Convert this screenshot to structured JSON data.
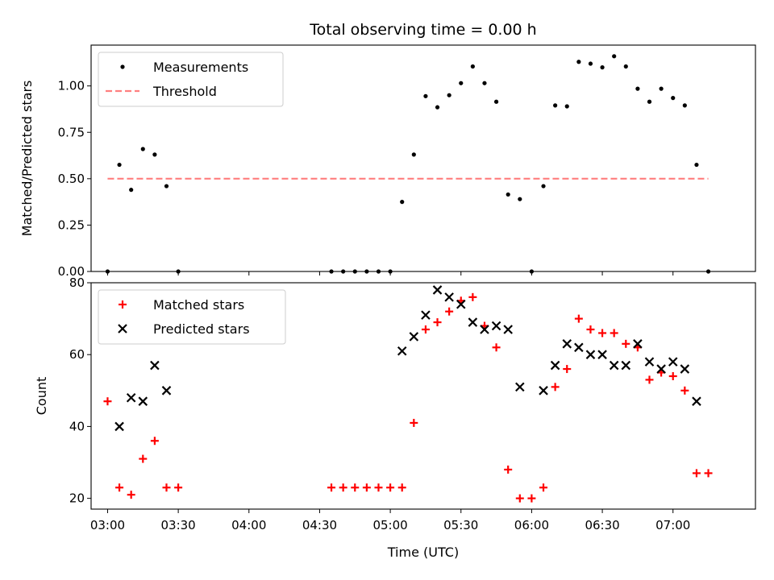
{
  "chart_data": [
    {
      "type": "scatter",
      "title": "Total observing time = 0.00 h",
      "xlabel": "",
      "ylabel": "Matched/Predicted stars",
      "ylim": [
        0,
        1.22
      ],
      "xlim": [
        "02:53",
        "07:35"
      ],
      "yticks": [
        "0.00",
        "0.25",
        "0.50",
        "0.75",
        "1.00"
      ],
      "legend_position": "upper-left",
      "series": [
        {
          "name": "Measurements",
          "marker": "dot",
          "color": "#000000",
          "points": [
            [
              "03:00",
              0.0
            ],
            [
              "03:05",
              0.575
            ],
            [
              "03:10",
              0.44
            ],
            [
              "03:15",
              0.66
            ],
            [
              "03:20",
              0.63
            ],
            [
              "03:25",
              0.46
            ],
            [
              "03:30",
              0.0
            ],
            [
              "04:35",
              0.0
            ],
            [
              "04:40",
              0.0
            ],
            [
              "04:45",
              0.0
            ],
            [
              "04:50",
              0.0
            ],
            [
              "04:55",
              0.0
            ],
            [
              "05:00",
              0.0
            ],
            [
              "05:05",
              0.375
            ],
            [
              "05:10",
              0.63
            ],
            [
              "05:15",
              0.945
            ],
            [
              "05:20",
              0.885
            ],
            [
              "05:25",
              0.95
            ],
            [
              "05:30",
              1.015
            ],
            [
              "05:35",
              1.105
            ],
            [
              "05:40",
              1.015
            ],
            [
              "05:45",
              0.915
            ],
            [
              "05:50",
              0.415
            ],
            [
              "05:55",
              0.39
            ],
            [
              "06:00",
              0.0
            ],
            [
              "06:05",
              0.46
            ],
            [
              "06:10",
              0.895
            ],
            [
              "06:15",
              0.89
            ],
            [
              "06:20",
              1.13
            ],
            [
              "06:25",
              1.12
            ],
            [
              "06:30",
              1.1
            ],
            [
              "06:35",
              1.16
            ],
            [
              "06:40",
              1.105
            ],
            [
              "06:45",
              0.985
            ],
            [
              "06:50",
              0.915
            ],
            [
              "06:55",
              0.985
            ],
            [
              "07:00",
              0.935
            ],
            [
              "07:05",
              0.895
            ],
            [
              "07:10",
              0.575
            ],
            [
              "07:15",
              0.0
            ]
          ]
        },
        {
          "name": "Threshold",
          "marker": "dashed-line",
          "color": "#ff7f7f",
          "points": [
            [
              "03:00",
              0.5
            ],
            [
              "07:15",
              0.5
            ]
          ]
        }
      ]
    },
    {
      "type": "scatter",
      "title": "",
      "xlabel": "Time (UTC)",
      "ylabel": "Count",
      "ylim": [
        17,
        80
      ],
      "xlim": [
        "02:53",
        "07:35"
      ],
      "yticks": [
        "20",
        "40",
        "60",
        "80"
      ],
      "xticks": [
        "03:00",
        "03:30",
        "04:00",
        "04:30",
        "05:00",
        "05:30",
        "06:00",
        "06:30",
        "07:00"
      ],
      "legend_position": "upper-left",
      "series": [
        {
          "name": "Matched stars",
          "marker": "plus",
          "color": "#ff0000",
          "points": [
            [
              "03:00",
              47
            ],
            [
              "03:05",
              23
            ],
            [
              "03:10",
              21
            ],
            [
              "03:15",
              31
            ],
            [
              "03:20",
              36
            ],
            [
              "03:25",
              23
            ],
            [
              "03:30",
              23
            ],
            [
              "04:35",
              23
            ],
            [
              "04:40",
              23
            ],
            [
              "04:45",
              23
            ],
            [
              "04:50",
              23
            ],
            [
              "04:55",
              23
            ],
            [
              "05:00",
              23
            ],
            [
              "05:05",
              23
            ],
            [
              "05:10",
              41
            ],
            [
              "05:15",
              67
            ],
            [
              "05:20",
              69
            ],
            [
              "05:25",
              72
            ],
            [
              "05:30",
              75
            ],
            [
              "05:35",
              76
            ],
            [
              "05:40",
              68
            ],
            [
              "05:45",
              62
            ],
            [
              "05:50",
              28
            ],
            [
              "05:55",
              20
            ],
            [
              "06:00",
              20
            ],
            [
              "06:05",
              23
            ],
            [
              "06:10",
              51
            ],
            [
              "06:15",
              56
            ],
            [
              "06:20",
              70
            ],
            [
              "06:25",
              67
            ],
            [
              "06:30",
              66
            ],
            [
              "06:35",
              66
            ],
            [
              "06:40",
              63
            ],
            [
              "06:45",
              62
            ],
            [
              "06:50",
              53
            ],
            [
              "06:55",
              55
            ],
            [
              "07:00",
              54
            ],
            [
              "07:05",
              50
            ],
            [
              "07:10",
              27
            ],
            [
              "07:15",
              27
            ]
          ]
        },
        {
          "name": "Predicted stars",
          "marker": "x",
          "color": "#000000",
          "points": [
            [
              "03:05",
              40
            ],
            [
              "03:10",
              48
            ],
            [
              "03:15",
              47
            ],
            [
              "03:20",
              57
            ],
            [
              "03:25",
              50
            ],
            [
              "05:05",
              61
            ],
            [
              "05:10",
              65
            ],
            [
              "05:15",
              71
            ],
            [
              "05:20",
              78
            ],
            [
              "05:25",
              76
            ],
            [
              "05:30",
              74
            ],
            [
              "05:35",
              69
            ],
            [
              "05:40",
              67
            ],
            [
              "05:45",
              68
            ],
            [
              "05:50",
              67
            ],
            [
              "05:55",
              51
            ],
            [
              "06:05",
              50
            ],
            [
              "06:10",
              57
            ],
            [
              "06:15",
              63
            ],
            [
              "06:20",
              62
            ],
            [
              "06:25",
              60
            ],
            [
              "06:30",
              60
            ],
            [
              "06:35",
              57
            ],
            [
              "06:40",
              57
            ],
            [
              "06:45",
              63
            ],
            [
              "06:50",
              58
            ],
            [
              "06:55",
              56
            ],
            [
              "07:00",
              58
            ],
            [
              "07:05",
              56
            ],
            [
              "07:10",
              47
            ]
          ]
        }
      ]
    }
  ]
}
